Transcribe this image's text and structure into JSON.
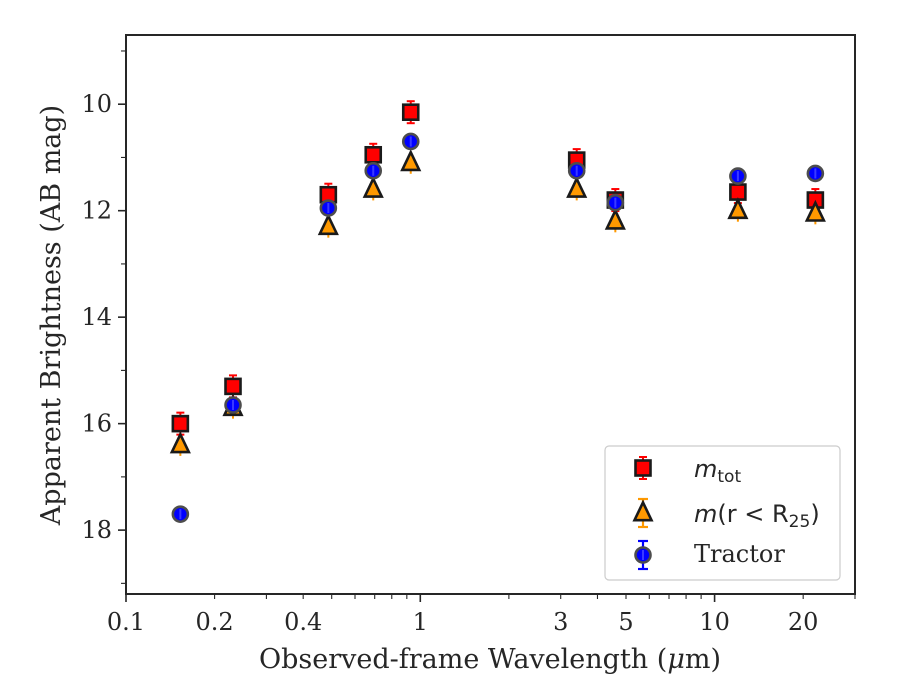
{
  "chart_data": {
    "type": "scatter",
    "x_scale": "log",
    "y_inverted": true,
    "xlabel_pre": "Observed-frame Wavelength (",
    "xlabel_mu": "μ",
    "xlabel_post": "m)",
    "ylabel": "Apparent Brightness (AB mag)",
    "xlim": [
      0.1,
      30
    ],
    "ylim": [
      19.2,
      8.7
    ],
    "x_ticks": [
      {
        "value": 0.1,
        "label": "0.1"
      },
      {
        "value": 0.2,
        "label": "0.2"
      },
      {
        "value": 0.4,
        "label": "0.4"
      },
      {
        "value": 1,
        "label": "1"
      },
      {
        "value": 3,
        "label": "3"
      },
      {
        "value": 5,
        "label": "5"
      },
      {
        "value": 10,
        "label": "10"
      },
      {
        "value": 20,
        "label": "20"
      }
    ],
    "y_ticks": [
      {
        "value": 10,
        "label": "10"
      },
      {
        "value": 12,
        "label": "12"
      },
      {
        "value": 14,
        "label": "14"
      },
      {
        "value": 16,
        "label": "16"
      },
      {
        "value": 18,
        "label": "18"
      }
    ],
    "grid": false,
    "legend_position": "bottom-right",
    "legend": {
      "tot_main": "m",
      "tot_sub": "tot",
      "r25_main": "m",
      "r25_mid": "(r < R",
      "r25_sub": "25",
      "r25_end": ")",
      "tractor": "Tractor"
    },
    "series": [
      {
        "key": "m_tot",
        "marker": "square",
        "color": "#ff0000",
        "edge": "#1a1a1a",
        "x": [
          0.153,
          0.231,
          0.487,
          0.692,
          0.928,
          3.4,
          4.6,
          12.0,
          22.0
        ],
        "y": [
          16.0,
          15.3,
          11.7,
          10.95,
          10.15,
          11.05,
          11.8,
          11.65,
          11.8
        ]
      },
      {
        "key": "m_r25",
        "marker": "triangle",
        "color": "#ff9900",
        "edge": "#1a1a1a",
        "x": [
          0.153,
          0.231,
          0.487,
          0.692,
          0.928,
          3.4,
          4.6,
          12.0,
          22.0
        ],
        "y": [
          16.4,
          15.7,
          12.3,
          11.6,
          11.1,
          11.6,
          12.2,
          12.0,
          12.05
        ]
      },
      {
        "key": "tractor",
        "marker": "circle",
        "color": "#0000ff",
        "edge": "#4d4d4d",
        "x": [
          0.153,
          0.231,
          0.487,
          0.692,
          0.928,
          3.4,
          4.6,
          12.0,
          22.0
        ],
        "y": [
          17.7,
          15.65,
          11.95,
          11.25,
          10.7,
          11.25,
          11.85,
          11.35,
          11.3
        ]
      }
    ]
  }
}
